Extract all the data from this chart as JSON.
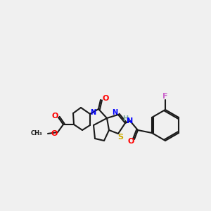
{
  "background_color": "#f0f0f0",
  "bond_color": "#1a1a1a",
  "atom_colors": {
    "N": "#0000ff",
    "O": "#ff0000",
    "S": "#ccaa00",
    "F": "#cc66cc",
    "H": "#7aaa9a",
    "C": "#1a1a1a"
  },
  "font_size": 7,
  "figsize": [
    3.0,
    3.0
  ],
  "dpi": 100
}
